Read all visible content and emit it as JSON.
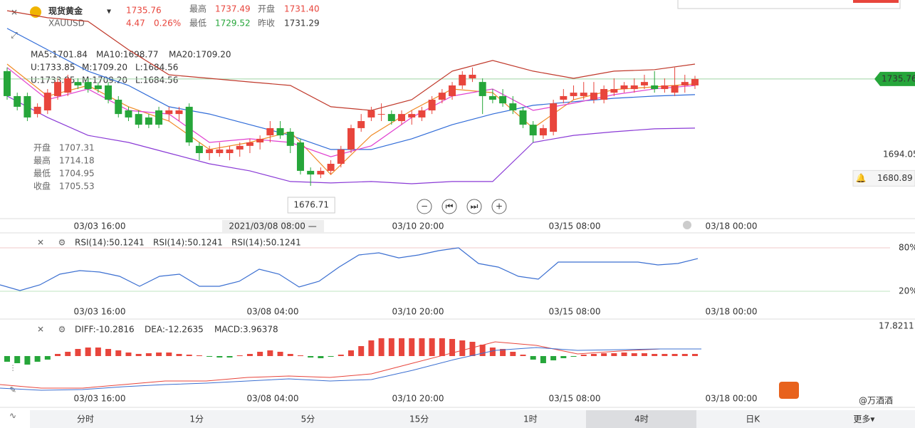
{
  "header": {
    "name": "现货黄金",
    "symbol": "XAUUSD",
    "price": "1735.76",
    "change": "4.47",
    "change_pct": "0.26%",
    "high_label": "最高",
    "high": "1737.49",
    "open_label": "开盘",
    "open": "1731.40",
    "low_label": "最低",
    "low": "1729.52",
    "prev_label": "昨收",
    "prev": "1731.29"
  },
  "ma_legend": [
    "MA5:1701.84",
    "MA10:1698.77",
    "MA20:1709.20"
  ],
  "boll_legend": [
    "U:1733.85",
    "M:1709.20",
    "L:1684.56"
  ],
  "ohlc_box": [
    [
      "开盘",
      "1707.31"
    ],
    [
      "最高",
      "1714.18"
    ],
    [
      "最低",
      "1704.95"
    ],
    [
      "收盘",
      "1705.53"
    ]
  ],
  "chart_data": [
    {
      "type": "candlestick",
      "up_color": "#e8453c",
      "down_color": "#26a63a",
      "ylim": [
        1658.6,
        1779.4
      ],
      "price_labels": [
        1735.76,
        1694.05,
        1680.89
      ],
      "low_label": "1676.71",
      "candles": [
        [
          1740.1,
          1742.1,
          1724.3,
          1726.3
        ],
        [
          1726.3,
          1728.2,
          1718.4,
          1720.4
        ],
        [
          1726.3,
          1728.2,
          1712.5,
          1714.5
        ],
        [
          1716.4,
          1722.3,
          1714.5,
          1720.4
        ],
        [
          1718.4,
          1730.2,
          1716.4,
          1728.2
        ],
        [
          1726.3,
          1736.1,
          1724.3,
          1734.1
        ],
        [
          1728.2,
          1738.1,
          1726.3,
          1736.1
        ],
        [
          1734.1,
          1736.1,
          1730.2,
          1732.2
        ],
        [
          1734.1,
          1736.1,
          1728.2,
          1730.2
        ],
        [
          1732.2,
          1734.1,
          1728.2,
          1730.2
        ],
        [
          1732.2,
          1734.1,
          1722.3,
          1724.3
        ],
        [
          1724.3,
          1726.3,
          1714.5,
          1716.4
        ],
        [
          1718.4,
          1720.4,
          1712.5,
          1714.5
        ],
        [
          1716.4,
          1718.4,
          1708.6,
          1710.5
        ],
        [
          1714.5,
          1716.4,
          1708.6,
          1710.5
        ],
        [
          1718.4,
          1720.4,
          1708.6,
          1710.5
        ],
        [
          1716.4,
          1720.4,
          1712.5,
          1718.4
        ],
        [
          1716.4,
          1720.4,
          1712.5,
          1718.4
        ],
        [
          1720.4,
          1722.3,
          1698.8,
          1700.7
        ],
        [
          1698.8,
          1700.7,
          1690.9,
          1694.8
        ],
        [
          1694.8,
          1698.8,
          1690.9,
          1696.8
        ],
        [
          1694.8,
          1700.7,
          1692.8,
          1696.8
        ],
        [
          1694.8,
          1698.8,
          1690.9,
          1696.8
        ],
        [
          1696.8,
          1700.7,
          1692.8,
          1698.8
        ],
        [
          1698.8,
          1702.7,
          1694.8,
          1700.7
        ],
        [
          1700.7,
          1704.6,
          1696.8,
          1702.7
        ],
        [
          1704.6,
          1712.5,
          1700.7,
          1708.6
        ],
        [
          1708.6,
          1712.5,
          1702.7,
          1704.6
        ],
        [
          1706.6,
          1708.6,
          1694.8,
          1698.8
        ],
        [
          1700.7,
          1702.7,
          1683.0,
          1685.0
        ],
        [
          1685.0,
          1686.9,
          1676.71,
          1683.0
        ],
        [
          1683.0,
          1686.9,
          1681.0,
          1685.0
        ],
        [
          1685.0,
          1690.9,
          1683.0,
          1688.9
        ],
        [
          1688.9,
          1698.8,
          1686.9,
          1696.8
        ],
        [
          1696.8,
          1710.5,
          1694.8,
          1708.6
        ],
        [
          1708.6,
          1716.4,
          1706.6,
          1712.5
        ],
        [
          1714.5,
          1720.4,
          1712.5,
          1718.4
        ],
        [
          1716.4,
          1722.3,
          1712.5,
          1716.4
        ],
        [
          1716.4,
          1718.4,
          1710.5,
          1712.5
        ],
        [
          1712.5,
          1718.4,
          1710.5,
          1716.4
        ],
        [
          1714.5,
          1718.4,
          1710.5,
          1716.4
        ],
        [
          1714.5,
          1720.4,
          1712.5,
          1718.4
        ],
        [
          1718.4,
          1726.3,
          1716.4,
          1724.3
        ],
        [
          1724.3,
          1730.2,
          1722.3,
          1728.2
        ],
        [
          1726.3,
          1734.1,
          1724.3,
          1732.2
        ],
        [
          1732.2,
          1740.1,
          1730.2,
          1738.1
        ],
        [
          1736.1,
          1742.1,
          1734.1,
          1738.1
        ],
        [
          1734.1,
          1736.1,
          1716.4,
          1726.3
        ],
        [
          1726.3,
          1730.2,
          1722.3,
          1724.3
        ],
        [
          1726.3,
          1730.2,
          1720.4,
          1722.3
        ],
        [
          1722.3,
          1726.3,
          1716.4,
          1718.4
        ],
        [
          1718.4,
          1720.4,
          1708.6,
          1710.5
        ],
        [
          1710.5,
          1712.5,
          1700.7,
          1704.6
        ],
        [
          1704.6,
          1710.5,
          1702.7,
          1708.6
        ],
        [
          1706.6,
          1724.3,
          1704.6,
          1722.3
        ],
        [
          1724.3,
          1730.2,
          1722.3,
          1726.3
        ],
        [
          1726.3,
          1732.2,
          1724.3,
          1728.2
        ],
        [
          1726.3,
          1734.1,
          1724.3,
          1728.2
        ],
        [
          1724.3,
          1734.1,
          1722.3,
          1728.2
        ],
        [
          1724.3,
          1732.2,
          1722.3,
          1730.2
        ],
        [
          1728.2,
          1736.1,
          1726.3,
          1730.2
        ],
        [
          1730.2,
          1734.1,
          1728.2,
          1732.2
        ],
        [
          1730.2,
          1736.1,
          1728.2,
          1732.2
        ],
        [
          1732.2,
          1738.1,
          1730.2,
          1734.1
        ],
        [
          1732.2,
          1740.1,
          1728.2,
          1730.2
        ],
        [
          1730.2,
          1736.1,
          1728.2,
          1732.2
        ],
        [
          1728.2,
          1742.1,
          1726.3,
          1732.2
        ],
        [
          1732.2,
          1738.1,
          1728.2,
          1734.1
        ],
        [
          1732.2,
          1737.49,
          1730.2,
          1735.76
        ]
      ],
      "lines": [
        {
          "color": "#c0392b",
          "values": [
            1773.5,
            1769.6,
            1767.6,
            1751.9,
            1738.1,
            1736.1,
            1734.1,
            1732.2,
            1720.4,
            1718.4,
            1724.3,
            1740.1,
            1746.0,
            1740.1,
            1736.1,
            1740.1,
            1740.9,
            1744.0
          ]
        },
        {
          "color": "#2f6bd8",
          "values": [
            1763.7,
            1751.9,
            1740.1,
            1732.2,
            1720.4,
            1716.4,
            1710.5,
            1704.6,
            1696.8,
            1696.8,
            1702.7,
            1710.5,
            1716.4,
            1721.2,
            1723.2,
            1725.1,
            1726.3,
            1727.1
          ]
        },
        {
          "color": "#8a3ad6",
          "values": [
            1726.3,
            1714.5,
            1704.6,
            1700.7,
            1694.8,
            1688.9,
            1685.0,
            1679.1,
            1678.3,
            1679.1,
            1677.9,
            1679.1,
            1679.1,
            1700.7,
            1704.6,
            1706.6,
            1708.2,
            1708.6
          ]
        },
        {
          "color": "#f08a24",
          "values": [
            1744.0,
            1726.3,
            1732.2,
            1720.4,
            1712.5,
            1696.8,
            1700.7,
            1706.6,
            1683.0,
            1704.6,
            1718.4,
            1730.2,
            1728.2,
            1708.6,
            1724.3,
            1729.9,
            1731.4,
            1733.0
          ]
        },
        {
          "color": "#e040d0",
          "values": [
            1742.1,
            1724.3,
            1730.2,
            1718.4,
            1716.4,
            1700.7,
            1702.7,
            1700.7,
            1692.8,
            1698.8,
            1714.5,
            1726.3,
            1730.2,
            1718.4,
            1722.4,
            1727.1,
            1730.3,
            1732.2
          ]
        }
      ]
    },
    {
      "type": "line",
      "legend": [
        "RSI(14):50.1241",
        "RSI(14):50.1241",
        "RSI(14):50.1241"
      ],
      "legend_colors": [
        "#1fb5c4",
        "#f08a24",
        "#3b6fd1"
      ],
      "color": "#3b6fd1",
      "ylim": [
        -17.4,
        100.7
      ],
      "yticks": [
        {
          "value": 80,
          "label": "80%"
        },
        {
          "value": 20,
          "label": "20%"
        }
      ],
      "values": [
        28.9,
        21.0,
        28.9,
        43.6,
        48.5,
        46.6,
        40.7,
        26.9,
        40.7,
        43.6,
        26.9,
        26.9,
        33.8,
        50.5,
        43.6,
        25.9,
        33.8,
        53.4,
        70.2,
        73.1,
        66.2,
        70.2,
        76.1,
        80.0,
        58.4,
        53.4,
        40.7,
        36.7,
        60.3,
        60.3,
        60.3,
        60.3,
        60.3,
        56.4,
        58.4,
        65.2
      ]
    },
    {
      "type": "macd",
      "legend": [
        "DIFF:-10.2816",
        "DEA:-12.2635",
        "MACD:3.96378"
      ],
      "legend_colors": [
        "#e8453c",
        "#3b6fd1",
        "#3b6fd1"
      ],
      "up_color": "#e8453c",
      "down_color": "#26a63a",
      "diff_color": "#e8453c",
      "dea_color": "#3b6fd1",
      "ylim": [
        -29.7,
        21.2
      ],
      "yticks": [
        17.8211
      ],
      "histogram": [
        -3.39,
        -4.24,
        -5.09,
        -3.39,
        -2.12,
        1.27,
        2.55,
        4.24,
        5.09,
        5.09,
        4.24,
        3.39,
        2.12,
        1.27,
        1.7,
        2.12,
        2.12,
        1.27,
        0.85,
        0.42,
        -0.42,
        -0.85,
        -0.85,
        0.42,
        1.27,
        2.55,
        3.39,
        2.55,
        1.27,
        0.42,
        -0.85,
        -1.27,
        -0.42,
        0.85,
        3.39,
        5.94,
        9.33,
        10.61,
        10.61,
        10.61,
        10.61,
        10.61,
        10.61,
        10.61,
        10.18,
        9.33,
        8.49,
        6.79,
        5.09,
        4.24,
        2.55,
        0.85,
        -2.12,
        -4.24,
        -2.55,
        -1.27,
        -0.42,
        0.85,
        1.27,
        1.7,
        1.7,
        2.12,
        1.7,
        1.7,
        1.27,
        1.27,
        1.27,
        1.27,
        1.27
      ],
      "diff": [
        -16.97,
        -19.09,
        -19.09,
        -16.97,
        -14.85,
        -14.85,
        -12.73,
        -11.88,
        -12.73,
        -10.61,
        -4.24,
        2.12,
        8.49,
        6.36,
        1.27,
        2.97,
        4.24,
        4.24
      ],
      "dea": [
        -19.09,
        -20.37,
        -19.94,
        -18.24,
        -16.97,
        -16.12,
        -14.85,
        -13.58,
        -14.85,
        -14.0,
        -8.49,
        -2.12,
        3.39,
        5.09,
        3.39,
        3.82,
        4.24,
        4.24
      ]
    }
  ],
  "time_axis": {
    "main": [
      "03/03 16:00",
      "2021/03/08 08:00 —",
      "03/10 20:00",
      "03/15 08:00",
      "03/18 00:00"
    ],
    "sub": [
      "03/03 16:00",
      "03/08 04:00",
      "03/10 20:00",
      "03/15 08:00",
      "03/18 00:00"
    ]
  },
  "tabs": [
    "分时",
    "1分",
    "5分",
    "15分",
    "1时",
    "4时",
    "日K",
    "更多▾"
  ],
  "watermark": "@万酒酒"
}
